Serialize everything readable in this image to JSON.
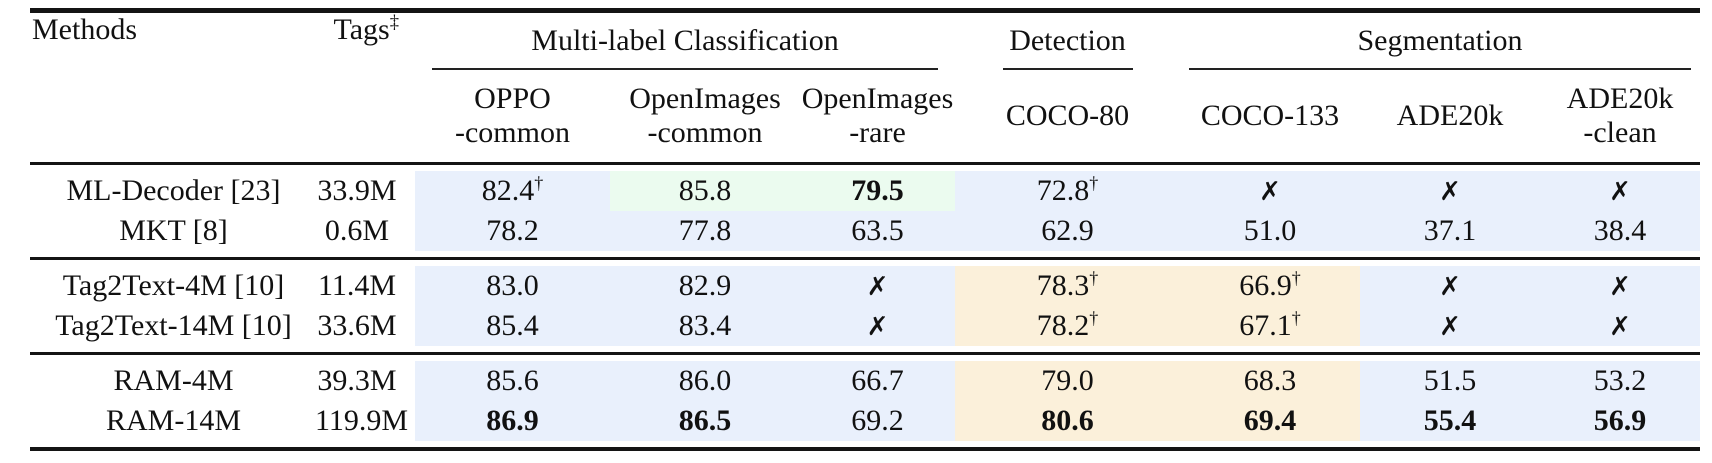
{
  "colors": {
    "highlight_blue": "#e9f0fc",
    "highlight_green": "#ebfbef",
    "highlight_orange": "#fbf0da",
    "rule_color": "#141414"
  },
  "header": {
    "methods_label": "Methods",
    "tags_label": "Tags",
    "tags_superscript": "‡",
    "groups": [
      {
        "label": "Multi-label Classification",
        "columns": 3
      },
      {
        "label": "Detection",
        "columns": 1
      },
      {
        "label": "Segmentation",
        "columns": 3
      }
    ],
    "columns": [
      {
        "line1": "OPPO",
        "line2": "-common"
      },
      {
        "line1": "OpenImages",
        "line2": "-common"
      },
      {
        "line1": "OpenImages",
        "line2": "-rare"
      },
      {
        "line1": "COCO-80",
        "line2": ""
      },
      {
        "line1": "COCO-133",
        "line2": ""
      },
      {
        "line1": "ADE20k",
        "line2": ""
      },
      {
        "line1": "ADE20k",
        "line2": "-clean"
      }
    ]
  },
  "sections": [
    {
      "rows": [
        {
          "method": "ML-Decoder [23]",
          "tags": "33.9M",
          "cells": [
            {
              "v": "82.4",
              "sup": "†",
              "bg": "blue"
            },
            {
              "v": "85.8",
              "bg": "green"
            },
            {
              "v": "79.5",
              "bold": true,
              "bg": "green"
            },
            {
              "v": "72.8",
              "sup": "†",
              "bg": "blue"
            },
            {
              "v": "✗",
              "cross": true,
              "bg": "blue"
            },
            {
              "v": "✗",
              "cross": true,
              "bg": "blue"
            },
            {
              "v": "✗",
              "cross": true,
              "bg": "blue"
            }
          ]
        },
        {
          "method": "MKT [8]",
          "tags": "0.6M",
          "cells": [
            {
              "v": "78.2",
              "bg": "blue"
            },
            {
              "v": "77.8",
              "bg": "blue"
            },
            {
              "v": "63.5",
              "bg": "blue"
            },
            {
              "v": "62.9",
              "bg": "blue"
            },
            {
              "v": "51.0",
              "bg": "blue"
            },
            {
              "v": "37.1",
              "bg": "blue"
            },
            {
              "v": "38.4",
              "bg": "blue"
            }
          ]
        }
      ]
    },
    {
      "rows": [
        {
          "method": "Tag2Text-4M [10]",
          "tags": "11.4M",
          "cells": [
            {
              "v": "83.0",
              "bg": "blue"
            },
            {
              "v": "82.9",
              "bg": "blue"
            },
            {
              "v": "✗",
              "cross": true,
              "bg": "blue"
            },
            {
              "v": "78.3",
              "sup": "†",
              "bg": "orange"
            },
            {
              "v": "66.9",
              "sup": "†",
              "bg": "orange"
            },
            {
              "v": "✗",
              "cross": true,
              "bg": "blue"
            },
            {
              "v": "✗",
              "cross": true,
              "bg": "blue"
            }
          ]
        },
        {
          "method": "Tag2Text-14M [10]",
          "tags": "33.6M",
          "cells": [
            {
              "v": "85.4",
              "bg": "blue"
            },
            {
              "v": "83.4",
              "bg": "blue"
            },
            {
              "v": "✗",
              "cross": true,
              "bg": "blue"
            },
            {
              "v": "78.2",
              "sup": "†",
              "bg": "orange"
            },
            {
              "v": "67.1",
              "sup": "†",
              "bg": "orange"
            },
            {
              "v": "✗",
              "cross": true,
              "bg": "blue"
            },
            {
              "v": "✗",
              "cross": true,
              "bg": "blue"
            }
          ]
        }
      ]
    },
    {
      "rows": [
        {
          "method": "RAM-4M",
          "tags": "39.3M",
          "cells": [
            {
              "v": "85.6",
              "bg": "blue"
            },
            {
              "v": "86.0",
              "bg": "blue"
            },
            {
              "v": "66.7",
              "bg": "blue"
            },
            {
              "v": "79.0",
              "bg": "orange"
            },
            {
              "v": "68.3",
              "bg": "orange"
            },
            {
              "v": "51.5",
              "bg": "blue"
            },
            {
              "v": "53.2",
              "bg": "blue"
            }
          ]
        },
        {
          "method": "RAM-14M",
          "tags": "119.9M",
          "cells": [
            {
              "v": "86.9",
              "bold": true,
              "bg": "blue"
            },
            {
              "v": "86.5",
              "bold": true,
              "bg": "blue"
            },
            {
              "v": "69.2",
              "bg": "blue"
            },
            {
              "v": "80.6",
              "bold": true,
              "bg": "orange"
            },
            {
              "v": "69.4",
              "bold": true,
              "bg": "orange"
            },
            {
              "v": "55.4",
              "bold": true,
              "bg": "blue"
            },
            {
              "v": "56.9",
              "bold": true,
              "bg": "blue"
            }
          ]
        }
      ]
    }
  ]
}
